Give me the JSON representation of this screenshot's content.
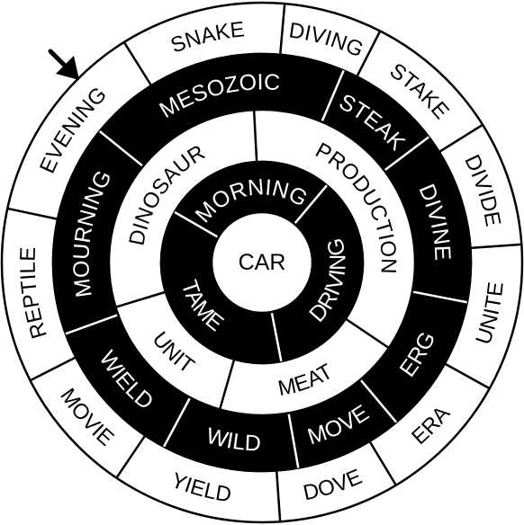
{
  "puzzle": {
    "center_word": "CAR",
    "colors": {
      "ink": "#000000",
      "paper": "#ffffff"
    },
    "start_marker": "arrow-icon",
    "rings": [
      {
        "ring": "outer",
        "fill": "#ffffff",
        "text_color": "#000000",
        "words": [
          "SNAKE",
          "DIVING",
          "STAKE",
          "DIVIDE",
          "UNITE",
          "ERA",
          "DOVE",
          "YIELD",
          "MOVIE",
          "REPTILE",
          "EVENING"
        ]
      },
      {
        "ring": "second",
        "fill": "#000000",
        "text_color": "#ffffff",
        "words": [
          "MESOZOIC",
          "STEAK",
          "DIVINE",
          "ERG",
          "MOVE",
          "WILD",
          "WIELD",
          "MOURNING"
        ]
      },
      {
        "ring": "third",
        "fill": "#ffffff",
        "text_color": "#000000",
        "words": [
          "PRODUCTION",
          "MEAT",
          "UNIT",
          "DINOSAUR"
        ]
      },
      {
        "ring": "inner",
        "fill": "#000000",
        "text_color": "#ffffff",
        "words": [
          "MORNING",
          "DRIVING",
          "TAME"
        ]
      }
    ]
  }
}
